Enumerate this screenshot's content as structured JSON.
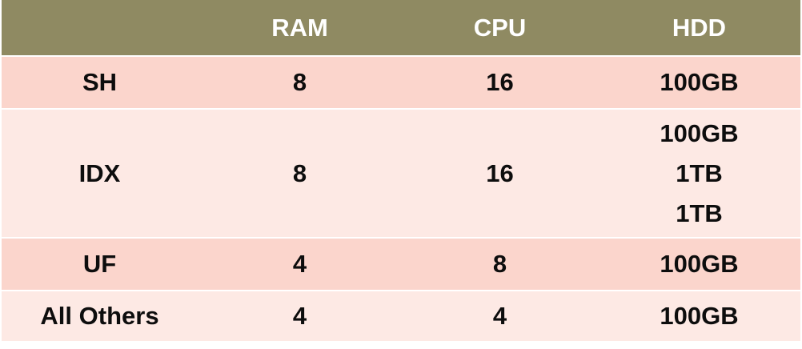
{
  "table": {
    "headers": [
      "",
      "RAM",
      "CPU",
      "HDD"
    ],
    "rows": [
      {
        "name": "SH",
        "ram": "8",
        "cpu": "16",
        "hdd": [
          "100GB"
        ]
      },
      {
        "name": "IDX",
        "ram": "8",
        "cpu": "16",
        "hdd": [
          "100GB",
          "1TB",
          "1TB"
        ]
      },
      {
        "name": "UF",
        "ram": "4",
        "cpu": "8",
        "hdd": [
          "100GB"
        ]
      },
      {
        "name": "All Others",
        "ram": "4",
        "cpu": "4",
        "hdd": [
          "100GB"
        ]
      }
    ]
  },
  "colors": {
    "header_bg": "#8f8a62",
    "header_text": "#ffffff",
    "row_odd_bg": "#fbd5cc",
    "row_even_bg": "#fde9e4",
    "cell_text": "#0d0d0d"
  }
}
